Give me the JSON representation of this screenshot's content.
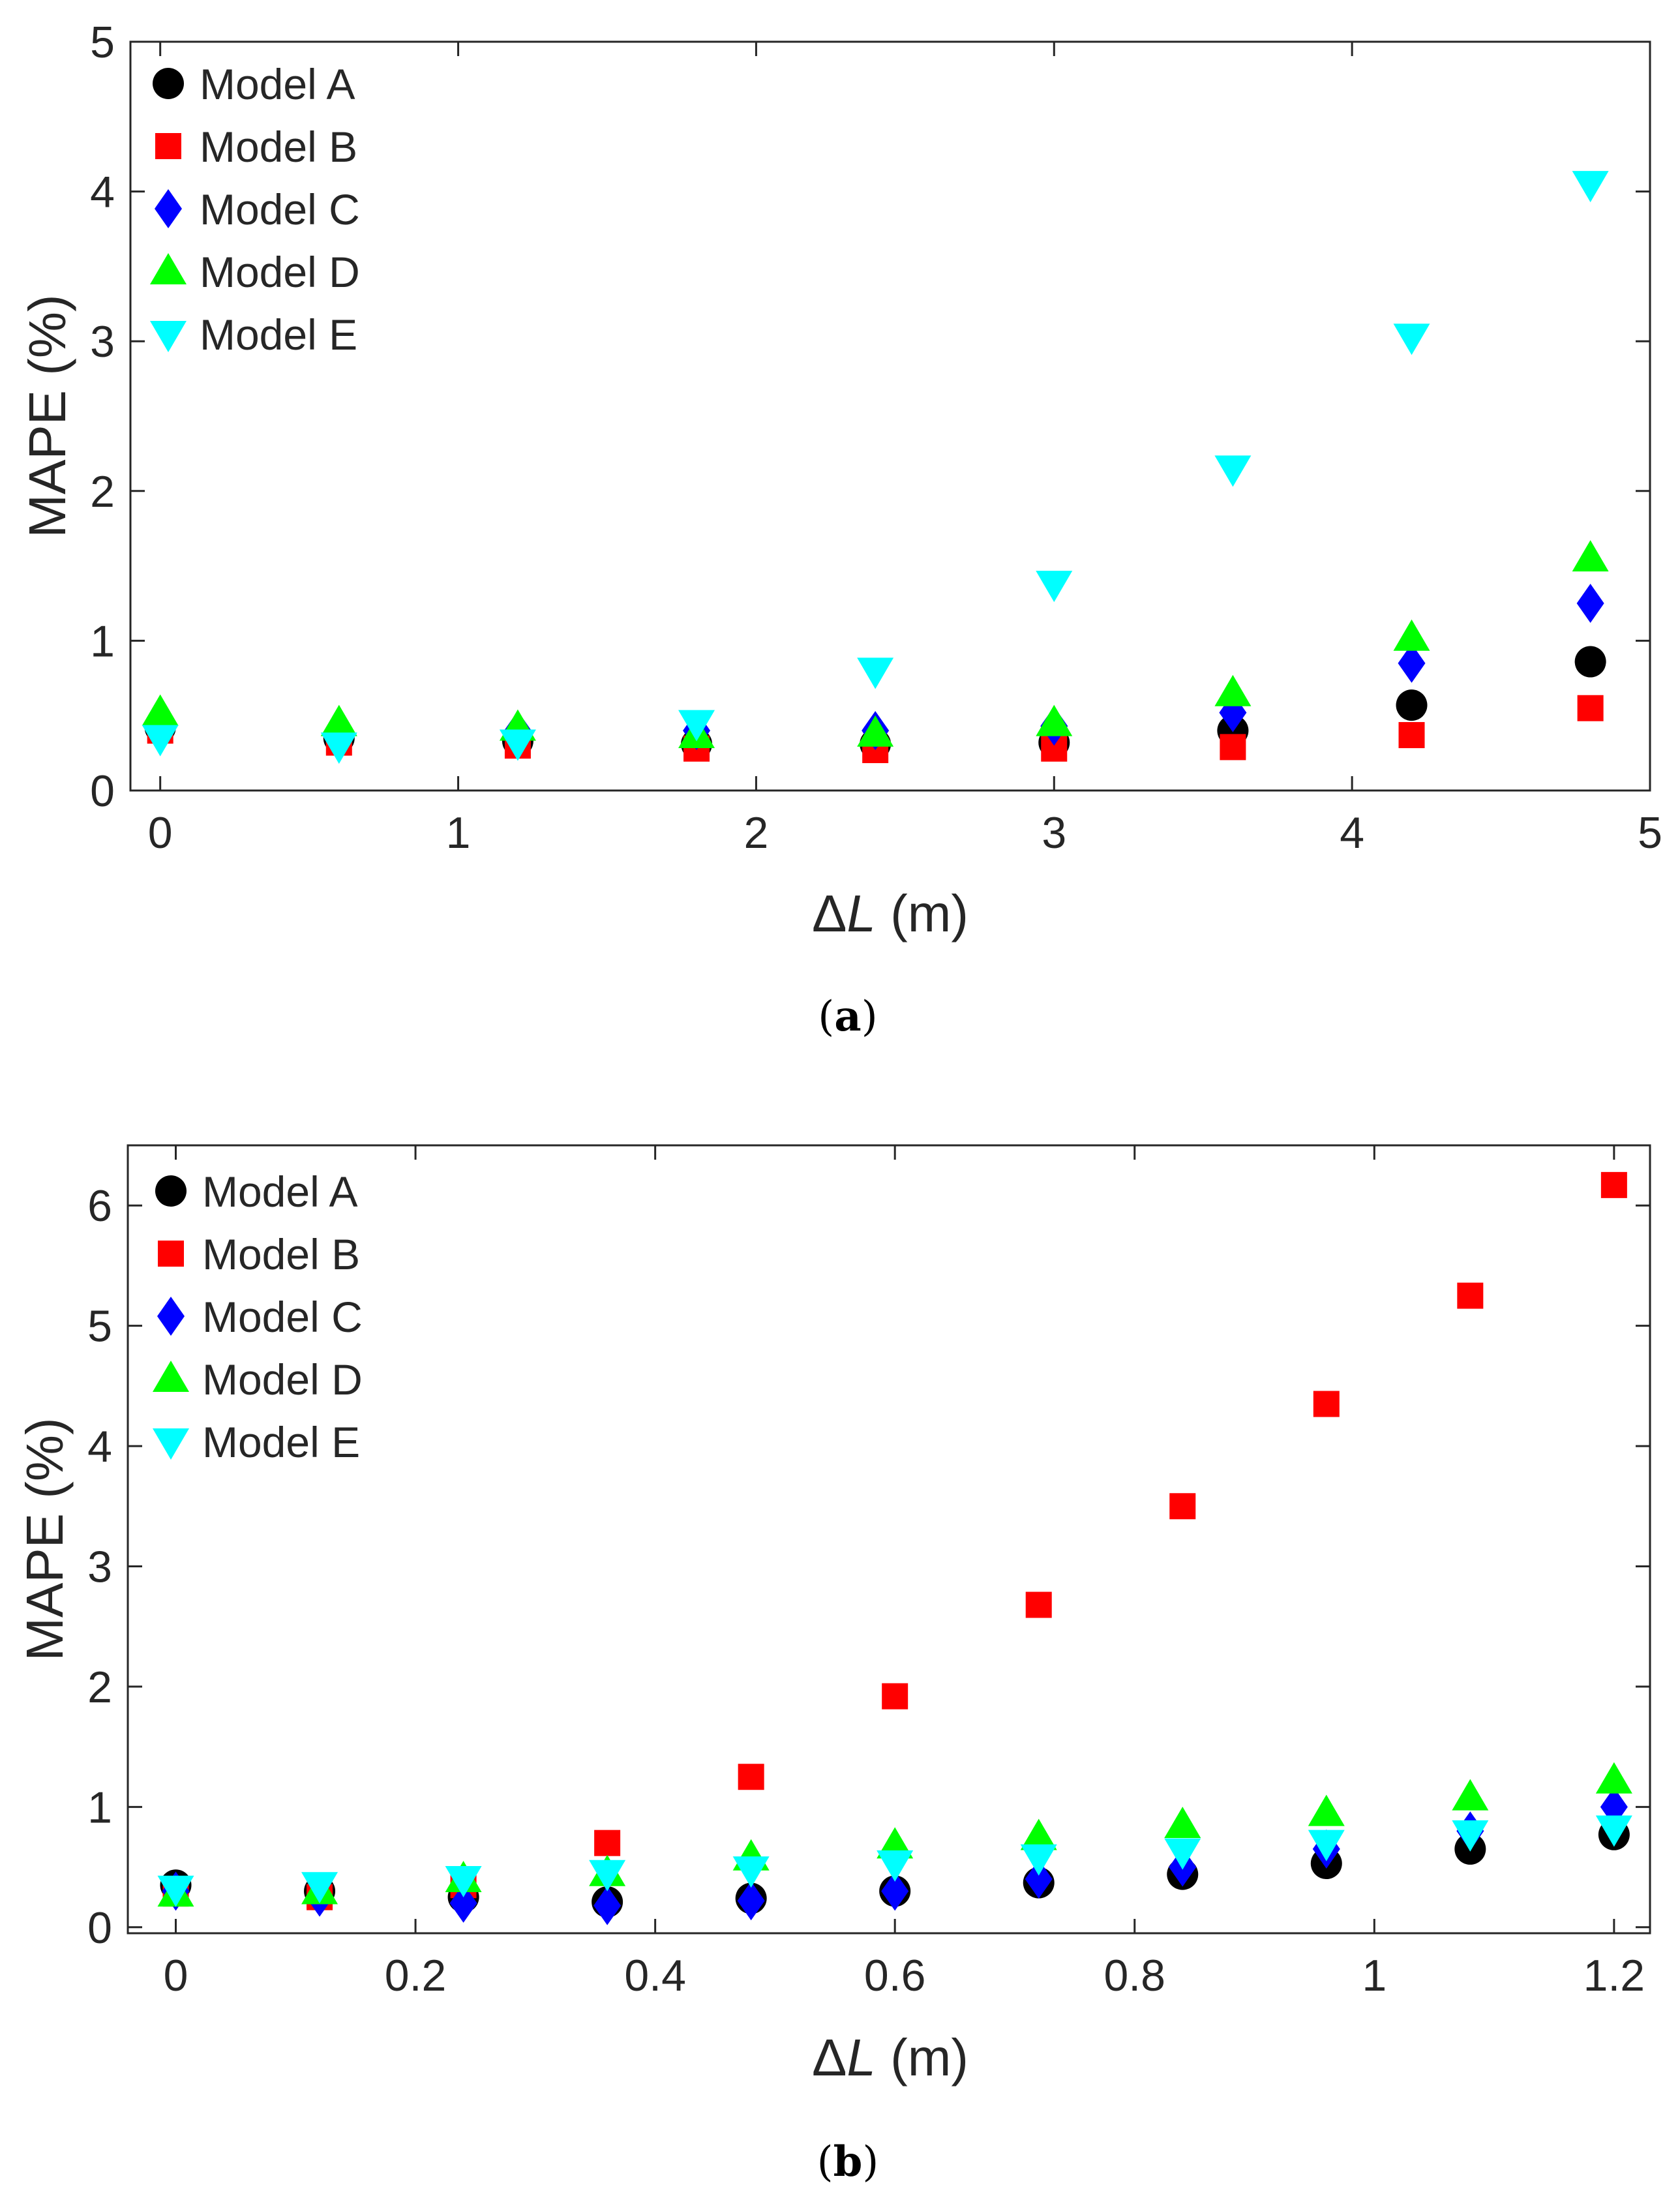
{
  "chart_data": [
    {
      "type": "scatter",
      "panel_label": {
        "open": "(",
        "letter": "a",
        "close": ")"
      },
      "xlabel": {
        "symbol": "Δ",
        "var": "L",
        "unit": " (m)"
      },
      "ylabel": "MAPE (%)",
      "xlim": [
        -0.1,
        5
      ],
      "ylim": [
        0,
        5
      ],
      "xticks": [
        0,
        1,
        2,
        3,
        4,
        5
      ],
      "xtick_labels": [
        "0",
        "1",
        "2",
        "3",
        "4",
        "5"
      ],
      "yticks": [
        0,
        1,
        2,
        3,
        4,
        5
      ],
      "ytick_labels": [
        "0",
        "1",
        "2",
        "3",
        "4",
        "5"
      ],
      "legend_position": "top-left",
      "x": [
        0,
        0.6,
        1.2,
        1.8,
        2.4,
        3.0,
        3.6,
        4.2,
        4.8
      ],
      "series": [
        {
          "name": "Model A",
          "marker": "circle",
          "color": "#000000",
          "values": [
            0.42,
            0.35,
            0.33,
            0.31,
            0.31,
            0.32,
            0.4,
            0.57,
            0.86
          ]
        },
        {
          "name": "Model B",
          "marker": "square",
          "color": "#ff0000",
          "values": [
            0.4,
            0.32,
            0.3,
            0.28,
            0.27,
            0.28,
            0.29,
            0.37,
            0.55
          ]
        },
        {
          "name": "Model C",
          "marker": "diamond",
          "color": "#0000ff",
          "values": [
            0.45,
            0.4,
            0.4,
            0.4,
            0.4,
            0.43,
            0.52,
            0.85,
            1.25
          ]
        },
        {
          "name": "Model D",
          "marker": "triangle-up",
          "color": "#00ff00",
          "values": [
            0.52,
            0.45,
            0.42,
            0.37,
            0.38,
            0.45,
            0.65,
            1.02,
            1.55
          ]
        },
        {
          "name": "Model E",
          "marker": "triangle-down",
          "color": "#00ffff",
          "values": [
            0.35,
            0.3,
            0.32,
            0.45,
            0.8,
            1.38,
            2.15,
            3.03,
            4.05
          ]
        }
      ]
    },
    {
      "type": "scatter",
      "panel_label": {
        "open": "(",
        "letter": "b",
        "close": ")"
      },
      "xlabel": {
        "symbol": "Δ",
        "var": "L",
        "unit": " (m)"
      },
      "ylabel": "MAPE (%)",
      "xlim": [
        -0.04,
        1.23
      ],
      "ylim": [
        -0.05,
        6.5
      ],
      "xticks": [
        0,
        0.2,
        0.4,
        0.6,
        0.8,
        1.0,
        1.2
      ],
      "xtick_labels": [
        "0",
        "0.2",
        "0.4",
        "0.6",
        "0.8",
        "1",
        "1.2"
      ],
      "yticks": [
        0,
        1,
        2,
        3,
        4,
        5,
        6
      ],
      "ytick_labels": [
        "0",
        "1",
        "2",
        "3",
        "4",
        "5",
        "6"
      ],
      "legend_position": "top-left",
      "x": [
        0,
        0.12,
        0.24,
        0.36,
        0.48,
        0.6,
        0.72,
        0.84,
        0.96,
        1.08,
        1.2
      ],
      "series": [
        {
          "name": "Model A",
          "marker": "circle",
          "color": "#000000",
          "values": [
            0.35,
            0.3,
            0.25,
            0.21,
            0.24,
            0.3,
            0.37,
            0.44,
            0.53,
            0.65,
            0.77
          ]
        },
        {
          "name": "Model B",
          "marker": "square",
          "color": "#ff0000",
          "values": [
            0.28,
            0.25,
            0.35,
            0.7,
            1.25,
            1.92,
            2.68,
            3.5,
            4.35,
            5.25,
            6.17
          ]
        },
        {
          "name": "Model C",
          "marker": "diamond",
          "color": "#0000ff",
          "values": [
            0.3,
            0.25,
            0.2,
            0.18,
            0.22,
            0.3,
            0.4,
            0.5,
            0.65,
            0.8,
            1.0
          ]
        },
        {
          "name": "Model D",
          "marker": "triangle-up",
          "color": "#00ff00",
          "values": [
            0.28,
            0.3,
            0.4,
            0.45,
            0.58,
            0.68,
            0.75,
            0.85,
            0.95,
            1.08,
            1.22
          ]
        },
        {
          "name": "Model E",
          "marker": "triangle-down",
          "color": "#00ffff",
          "values": [
            0.32,
            0.35,
            0.4,
            0.45,
            0.48,
            0.53,
            0.58,
            0.63,
            0.7,
            0.78,
            0.82
          ]
        }
      ]
    }
  ]
}
